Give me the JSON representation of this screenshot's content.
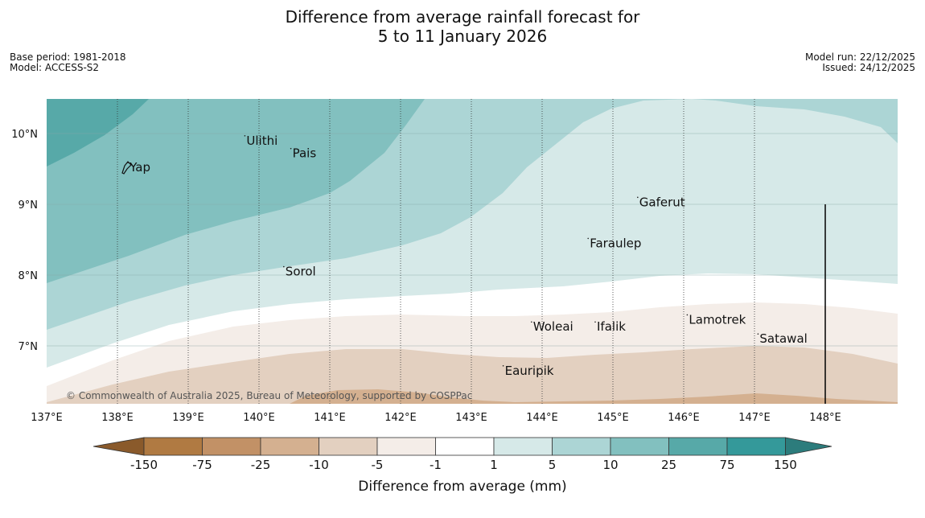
{
  "title": {
    "line1": "Difference from average rainfall forecast for",
    "line2": "5 to 11 January 2026"
  },
  "meta": {
    "base_period": "Base period: 1981-2018",
    "model": "Model: ACCESS-S2",
    "model_run": "Model run: 22/12/2025",
    "issued": "Issued: 24/12/2025"
  },
  "map": {
    "lon_ticks": [
      "137°E",
      "138°E",
      "139°E",
      "140°E",
      "141°E",
      "142°E",
      "143°E",
      "144°E",
      "145°E",
      "146°E",
      "147°E",
      "148°E"
    ],
    "lat_ticks": [
      "10°N",
      "9°N",
      "8°N",
      "7°N"
    ],
    "copyright": "© Commonwealth of Australia 2025, Bureau of Meteorology, supported by COSPPac",
    "places": [
      {
        "name": "Ulithi",
        "lon": 139.8,
        "lat": 9.9
      },
      {
        "name": "Pais",
        "lon": 140.45,
        "lat": 9.72
      },
      {
        "name": "Yap",
        "lon": 138.15,
        "lat": 9.52
      },
      {
        "name": "Gaferut",
        "lon": 145.35,
        "lat": 9.03
      },
      {
        "name": "Faraulep",
        "lon": 144.65,
        "lat": 8.45
      },
      {
        "name": "Sorol",
        "lon": 140.35,
        "lat": 8.05
      },
      {
        "name": "Lamotrek",
        "lon": 146.05,
        "lat": 7.37
      },
      {
        "name": "Woleai",
        "lon": 143.85,
        "lat": 7.27
      },
      {
        "name": "Ifalik",
        "lon": 144.75,
        "lat": 7.27
      },
      {
        "name": "Satawal",
        "lon": 147.05,
        "lat": 7.1
      },
      {
        "name": "Eauripik",
        "lon": 143.45,
        "lat": 6.65
      }
    ]
  },
  "colorbar": {
    "title": "Difference from average (mm)",
    "labels": [
      "-150",
      "-75",
      "-25",
      "-10",
      "-5",
      "-1",
      "1",
      "5",
      "10",
      "25",
      "75",
      "150"
    ],
    "colors": {
      "under": "#8a5a2b",
      "bins": [
        "#b07a42",
        "#c29166",
        "#d4b090",
        "#e3d0c0",
        "#f4ede8",
        "#ffffff",
        "#d6e9e8",
        "#acd5d5",
        "#82c0bf",
        "#57a9a8",
        "#34999a"
      ],
      "over": "#2c7c7c"
    }
  }
}
